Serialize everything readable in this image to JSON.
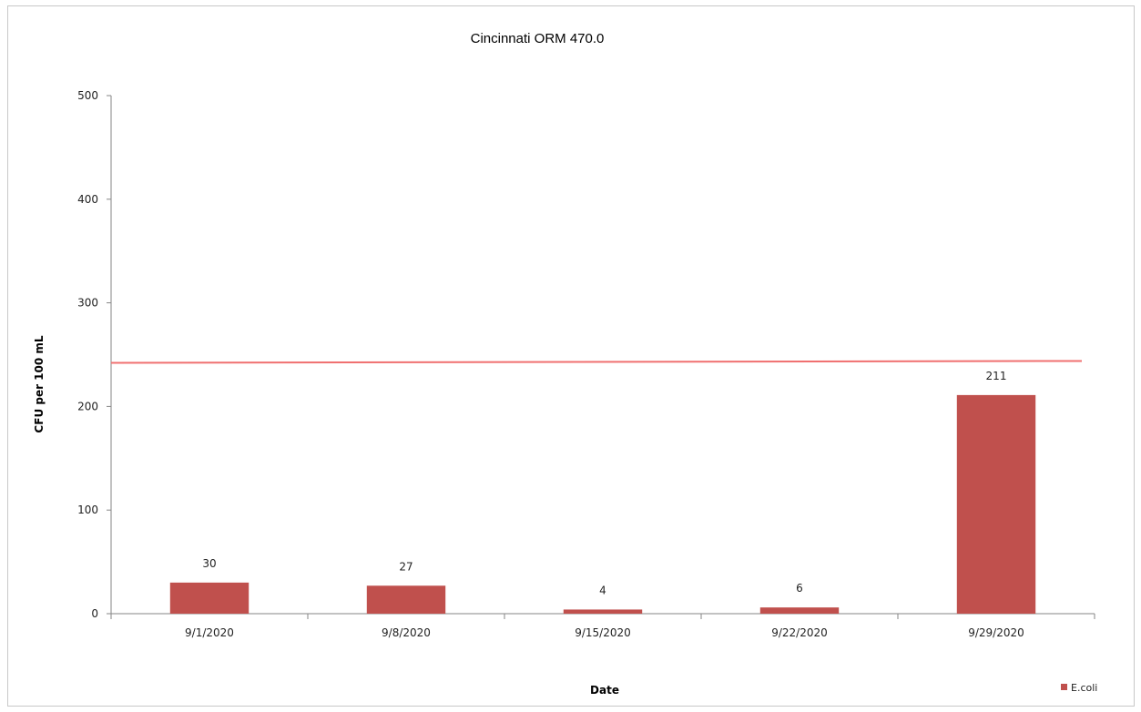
{
  "chart_data": {
    "type": "bar",
    "title": "Cincinnati ORM 470.0",
    "xlabel": "Date",
    "ylabel": "CFU per 100 mL",
    "categories": [
      "9/1/2020",
      "9/8/2020",
      "9/15/2020",
      "9/22/2020",
      "9/29/2020"
    ],
    "series": [
      {
        "name": "E.coli",
        "values": [
          30,
          27,
          4,
          6,
          211
        ],
        "color": "#c0504d"
      }
    ],
    "reference_line": {
      "value": 243,
      "color": "#f07070"
    },
    "yticks": [
      "0",
      "100",
      "200",
      "300",
      "400",
      "500"
    ],
    "ylim": [
      0,
      500
    ],
    "grid": false,
    "legend": "bottom-right"
  }
}
